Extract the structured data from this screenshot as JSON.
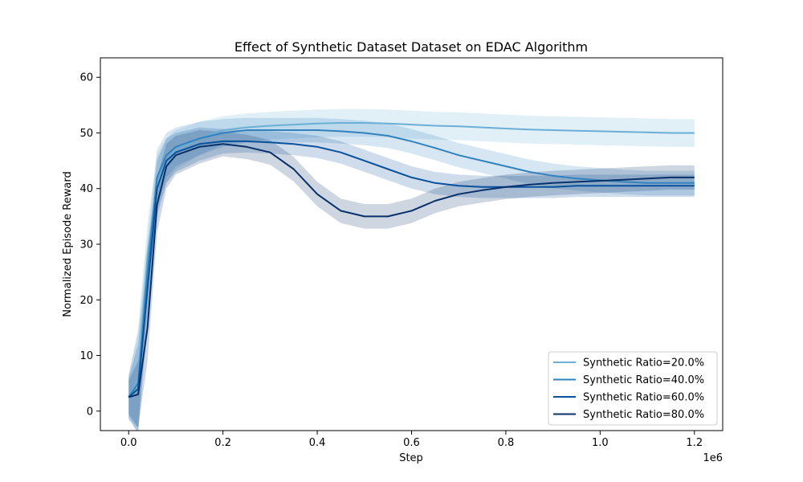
{
  "chart_data": {
    "type": "line",
    "title": "Effect of Synthetic Dataset Dataset on EDAC Algorithm",
    "xlabel": "Step",
    "ylabel": "Normalized Episode Reward",
    "x_offset_label": "1e6",
    "xlim": [
      -60000,
      1260000
    ],
    "ylim": [
      -3.5,
      63.5
    ],
    "x_ticks": [
      0,
      200000,
      400000,
      600000,
      800000,
      1000000,
      1200000
    ],
    "x_tick_labels": [
      "0.0",
      "0.2",
      "0.4",
      "0.6",
      "0.8",
      "1.0",
      "1.2"
    ],
    "y_ticks": [
      0,
      10,
      20,
      30,
      40,
      50,
      60
    ],
    "y_tick_labels": [
      "0",
      "10",
      "20",
      "30",
      "40",
      "50",
      "60"
    ],
    "grid": false,
    "legend_position": "lower-right",
    "x": [
      0,
      20000,
      40000,
      60000,
      80000,
      100000,
      150000,
      200000,
      250000,
      300000,
      350000,
      400000,
      450000,
      500000,
      550000,
      600000,
      650000,
      700000,
      750000,
      800000,
      850000,
      900000,
      950000,
      1000000,
      1050000,
      1100000,
      1150000,
      1200000
    ],
    "series": [
      {
        "name": "Synthetic Ratio=20.0%",
        "color": "#6baed6",
        "values": [
          2.5,
          6,
          28,
          41,
          45,
          47,
          49,
          50.5,
          51,
          51.3,
          51.5,
          51.7,
          51.8,
          51.8,
          51.7,
          51.5,
          51.3,
          51.2,
          51,
          50.8,
          50.6,
          50.5,
          50.4,
          50.3,
          50.2,
          50.1,
          50,
          50
        ],
        "band": [
          4,
          9,
          6,
          5,
          4,
          3.5,
          3,
          2.5,
          2.5,
          2.5,
          2.5,
          2.5,
          2.5,
          2.5,
          2.5,
          2.5,
          2.5,
          2.5,
          2.5,
          2.5,
          2.5,
          2.5,
          2.5,
          2.5,
          2.5,
          2.5,
          2.5,
          2.5
        ]
      },
      {
        "name": "Synthetic Ratio=40.0%",
        "color": "#3182bd",
        "values": [
          2.5,
          5,
          25,
          42,
          46,
          47.5,
          49,
          50,
          50.5,
          50.5,
          50.5,
          50.5,
          50.3,
          50,
          49.5,
          48.5,
          47.3,
          46,
          45,
          44,
          43,
          42.3,
          41.8,
          41.5,
          41.2,
          41,
          41,
          41
        ],
        "band": [
          4,
          9,
          6,
          5,
          4,
          3.5,
          3,
          2.5,
          2.2,
          2.2,
          2.2,
          2.2,
          2.2,
          2.2,
          2.2,
          2.2,
          2.2,
          2.2,
          2.2,
          2.2,
          2.2,
          2.2,
          2.2,
          2.2,
          2.2,
          2.2,
          2.2,
          2.2
        ]
      },
      {
        "name": "Synthetic Ratio=60.0%",
        "color": "#08519c",
        "values": [
          2.5,
          4,
          22,
          40,
          45,
          46.5,
          48,
          48.5,
          48.5,
          48.3,
          48,
          47.5,
          46.5,
          45,
          43.5,
          42,
          41,
          40.5,
          40.3,
          40.3,
          40.3,
          40.3,
          40.5,
          40.5,
          40.5,
          40.5,
          40.5,
          40.5
        ],
        "band": [
          3.5,
          8,
          6,
          5,
          4,
          3.5,
          3,
          2.2,
          2,
          2,
          2,
          2,
          2,
          2,
          2,
          2,
          2,
          2,
          2,
          2,
          2,
          2,
          2,
          2,
          2,
          2,
          2,
          2
        ]
      },
      {
        "name": "Synthetic Ratio=80.0%",
        "color": "#08306b",
        "values": [
          2.5,
          3,
          15,
          37,
          44,
          46,
          47.5,
          48,
          47.5,
          46.5,
          43.5,
          39,
          36,
          35,
          35,
          36,
          37.8,
          39,
          39.7,
          40.3,
          40.7,
          41,
          41.2,
          41.4,
          41.6,
          41.8,
          42,
          42
        ],
        "band": [
          3,
          6,
          6,
          5,
          4,
          3.5,
          3,
          2.2,
          2.2,
          2.2,
          2.2,
          2.2,
          2.2,
          2.2,
          2.2,
          2.2,
          2.2,
          2.2,
          2.2,
          2.2,
          2.2,
          2.2,
          2.2,
          2.2,
          2.2,
          2.2,
          2.2,
          2.2
        ]
      }
    ]
  }
}
